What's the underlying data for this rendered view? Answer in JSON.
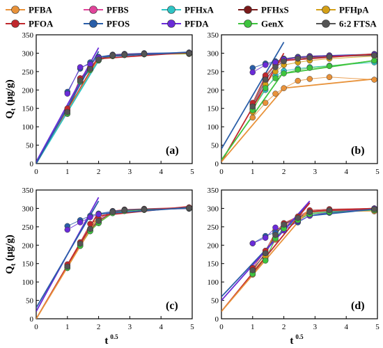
{
  "legend": [
    {
      "name": "PFBA",
      "color": "#e8923a"
    },
    {
      "name": "PFBS",
      "color": "#e0449a"
    },
    {
      "name": "PFHxA",
      "color": "#2ec4c4"
    },
    {
      "name": "PFHxS",
      "color": "#7a1a1a"
    },
    {
      "name": "PFHpA",
      "color": "#d4a017"
    },
    {
      "name": "PFOA",
      "color": "#c0282d"
    },
    {
      "name": "PFOS",
      "color": "#2a5ea8"
    },
    {
      "name": "PFDA",
      "color": "#6a2bd8"
    },
    {
      "name": "GenX",
      "color": "#3ec43e"
    },
    {
      "name": "6:2 FTSA",
      "color": "#555555"
    }
  ],
  "chart_data": [
    {
      "type": "scatter",
      "panel_label": "(a)",
      "ylabel": "Q",
      "ylabel_sub": "t",
      "ylabel_unit": " (μg/g)",
      "xlabel": "",
      "xlim": [
        0,
        5
      ],
      "ylim": [
        0,
        350
      ],
      "xticks": [
        "0",
        "1",
        "2",
        "3",
        "4",
        "5"
      ],
      "yticks": [
        "0",
        "50",
        "100",
        "150",
        "200",
        "250",
        "300",
        "350"
      ],
      "x": [
        1,
        1.41,
        1.73,
        2,
        2.45,
        2.83,
        3.46,
        4.9
      ],
      "series": [
        {
          "name": "PFBA",
          "values": [
            140,
            225,
            255,
            282,
            292,
            295,
            297,
            298
          ]
        },
        {
          "name": "PFBS",
          "values": [
            145,
            230,
            260,
            285,
            295,
            297,
            298,
            300
          ]
        },
        {
          "name": "PFHxA",
          "values": [
            135,
            222,
            255,
            280,
            293,
            296,
            298,
            300
          ]
        },
        {
          "name": "PFHxS",
          "values": [
            142,
            228,
            258,
            284,
            294,
            296,
            298,
            300
          ]
        },
        {
          "name": "PFHpA",
          "values": [
            138,
            226,
            256,
            283,
            292,
            295,
            297,
            298
          ]
        },
        {
          "name": "PFOA",
          "values": [
            150,
            232,
            262,
            287,
            296,
            298,
            299,
            301
          ]
        },
        {
          "name": "PFOS",
          "values": [
            195,
            258,
            275,
            290,
            296,
            298,
            300,
            302
          ]
        },
        {
          "name": "PFDA",
          "values": [
            190,
            262,
            270,
            288,
            295,
            297,
            299,
            301
          ]
        },
        {
          "name": "GenX",
          "values": [
            136,
            224,
            254,
            281,
            293,
            295,
            297,
            299
          ]
        },
        {
          "name": "6:2 FTSA",
          "values": [
            140,
            226,
            257,
            283,
            294,
            296,
            298,
            300
          ]
        }
      ],
      "fit_lines": [
        {
          "name": "PFOA",
          "x": [
            0,
            2
          ],
          "y": [
            0,
            290
          ]
        },
        {
          "name": "PFBA",
          "x": [
            0,
            2
          ],
          "y": [
            0,
            285
          ]
        },
        {
          "name": "PFHxA",
          "x": [
            0,
            2
          ],
          "y": [
            0,
            280
          ]
        },
        {
          "name": "PFDA",
          "x": [
            0,
            2
          ],
          "y": [
            5,
            315
          ]
        },
        {
          "name": "PFOS",
          "x": [
            0,
            2
          ],
          "y": [
            0,
            305
          ]
        },
        {
          "name": "PFOA",
          "x": [
            2,
            4.9
          ],
          "y": [
            285,
            302
          ]
        },
        {
          "name": "PFOS",
          "x": [
            2,
            4.9
          ],
          "y": [
            290,
            303
          ]
        }
      ]
    },
    {
      "type": "scatter",
      "panel_label": "(b)",
      "ylabel": "",
      "xlabel": "",
      "xlim": [
        0,
        5
      ],
      "ylim": [
        0,
        350
      ],
      "xticks": [
        "0",
        "1",
        "2",
        "3",
        "4",
        "5"
      ],
      "yticks": [
        "0",
        "50",
        "100",
        "150",
        "200",
        "250",
        "300",
        "350"
      ],
      "x": [
        1,
        1.41,
        1.73,
        2,
        2.45,
        2.83,
        3.46,
        4.9
      ],
      "series": [
        {
          "name": "PFBA",
          "values": [
            125,
            165,
            190,
            205,
            225,
            230,
            235,
            228
          ]
        },
        {
          "name": "PFBS",
          "values": [
            150,
            225,
            262,
            280,
            288,
            290,
            292,
            295
          ]
        },
        {
          "name": "PFHxA",
          "values": [
            148,
            200,
            238,
            252,
            258,
            262,
            266,
            275
          ]
        },
        {
          "name": "PFHxS",
          "values": [
            160,
            235,
            268,
            282,
            288,
            290,
            292,
            295
          ]
        },
        {
          "name": "PFHpA",
          "values": [
            140,
            215,
            250,
            268,
            275,
            280,
            285,
            292
          ]
        },
        {
          "name": "PFOA",
          "values": [
            165,
            240,
            270,
            285,
            290,
            292,
            294,
            296
          ]
        },
        {
          "name": "PFOS",
          "values": [
            260,
            272,
            278,
            285,
            290,
            292,
            294,
            298
          ]
        },
        {
          "name": "PFDA",
          "values": [
            248,
            268,
            275,
            283,
            288,
            291,
            293,
            297
          ]
        },
        {
          "name": "GenX",
          "values": [
            145,
            205,
            232,
            245,
            255,
            260,
            265,
            280
          ]
        },
        {
          "name": "6:2 FTSA",
          "values": [
            155,
            228,
            262,
            278,
            285,
            288,
            290,
            294
          ]
        }
      ],
      "fit_lines": [
        {
          "name": "PFOS",
          "x": [
            0,
            2
          ],
          "y": [
            40,
            330
          ]
        },
        {
          "name": "PFOA",
          "x": [
            0,
            2
          ],
          "y": [
            5,
            300
          ]
        },
        {
          "name": "PFBA",
          "x": [
            0,
            2
          ],
          "y": [
            5,
            205
          ]
        },
        {
          "name": "GenX",
          "x": [
            0,
            2
          ],
          "y": [
            10,
            250
          ]
        },
        {
          "name": "PFBA",
          "x": [
            2,
            4.9
          ],
          "y": [
            205,
            230
          ]
        },
        {
          "name": "GenX",
          "x": [
            2,
            4.9
          ],
          "y": [
            245,
            280
          ]
        },
        {
          "name": "PFOA",
          "x": [
            2,
            4.9
          ],
          "y": [
            280,
            298
          ]
        }
      ]
    },
    {
      "type": "scatter",
      "panel_label": "(c)",
      "ylabel": "Q",
      "ylabel_sub": "t",
      "ylabel_unit": " (μg/g)",
      "xlabel": "t",
      "xlabel_sup": "0.5",
      "xlim": [
        0,
        5
      ],
      "ylim": [
        0,
        350
      ],
      "xticks": [
        "0",
        "1",
        "2",
        "3",
        "4",
        "5"
      ],
      "yticks": [
        "0",
        "50",
        "100",
        "150",
        "200",
        "250",
        "300",
        "350"
      ],
      "x": [
        1,
        1.41,
        1.73,
        2,
        2.45,
        2.83,
        3.46,
        4.9
      ],
      "series": [
        {
          "name": "PFBA",
          "values": [
            140,
            200,
            240,
            262,
            288,
            294,
            296,
            300
          ]
        },
        {
          "name": "PFBS",
          "values": [
            145,
            205,
            245,
            268,
            292,
            296,
            298,
            302
          ]
        },
        {
          "name": "PFHxA",
          "values": [
            138,
            198,
            238,
            260,
            288,
            293,
            296,
            300
          ]
        },
        {
          "name": "PFHxS",
          "values": [
            142,
            202,
            242,
            265,
            290,
            295,
            297,
            301
          ]
        },
        {
          "name": "PFHpA",
          "values": [
            140,
            200,
            240,
            262,
            289,
            294,
            296,
            300
          ]
        },
        {
          "name": "PFOA",
          "values": [
            148,
            208,
            258,
            272,
            293,
            297,
            299,
            303
          ]
        },
        {
          "name": "PFOS",
          "values": [
            252,
            268,
            280,
            286,
            292,
            296,
            298,
            300
          ]
        },
        {
          "name": "PFDA",
          "values": [
            242,
            262,
            276,
            284,
            290,
            294,
            297,
            299
          ]
        },
        {
          "name": "GenX",
          "values": [
            138,
            198,
            238,
            260,
            287,
            293,
            296,
            300
          ]
        },
        {
          "name": "6:2 FTSA",
          "values": [
            142,
            204,
            244,
            266,
            290,
            295,
            297,
            301
          ]
        }
      ],
      "fit_lines": [
        {
          "name": "PFDA",
          "x": [
            0,
            2
          ],
          "y": [
            20,
            330
          ]
        },
        {
          "name": "PFOS",
          "x": [
            0,
            2
          ],
          "y": [
            30,
            320
          ]
        },
        {
          "name": "PFOA",
          "x": [
            0,
            2
          ],
          "y": [
            0,
            290
          ]
        },
        {
          "name": "PFBA",
          "x": [
            0,
            2
          ],
          "y": [
            0,
            280
          ]
        },
        {
          "name": "PFOA",
          "x": [
            2,
            4.9
          ],
          "y": [
            280,
            305
          ]
        },
        {
          "name": "PFOS",
          "x": [
            2,
            4.9
          ],
          "y": [
            285,
            302
          ]
        }
      ]
    },
    {
      "type": "scatter",
      "panel_label": "(d)",
      "ylabel": "",
      "xlabel": "t",
      "xlabel_sup": "0.5",
      "xlim": [
        0,
        5
      ],
      "ylim": [
        0,
        350
      ],
      "xticks": [
        "0",
        "1",
        "2",
        "3",
        "4",
        "5"
      ],
      "yticks": [
        "0",
        "50",
        "100",
        "150",
        "200",
        "250",
        "300",
        "350"
      ],
      "x": [
        1,
        1.41,
        1.73,
        2,
        2.45,
        2.83,
        3.46,
        4.9
      ],
      "series": [
        {
          "name": "PFBA",
          "values": [
            120,
            165,
            215,
            250,
            270,
            285,
            292,
            292
          ]
        },
        {
          "name": "PFBS",
          "values": [
            130,
            180,
            230,
            255,
            272,
            290,
            295,
            298
          ]
        },
        {
          "name": "PFHxA",
          "values": [
            125,
            160,
            220,
            248,
            268,
            286,
            292,
            296
          ]
        },
        {
          "name": "PFHxS",
          "values": [
            135,
            175,
            228,
            258,
            275,
            292,
            296,
            300
          ]
        },
        {
          "name": "PFHpA",
          "values": [
            128,
            170,
            240,
            252,
            270,
            288,
            294,
            295
          ]
        },
        {
          "name": "PFOA",
          "values": [
            138,
            185,
            235,
            260,
            278,
            295,
            298,
            300
          ]
        },
        {
          "name": "PFOS",
          "values": [
            205,
            225,
            235,
            250,
            262,
            280,
            288,
            298
          ]
        },
        {
          "name": "PFDA",
          "values": [
            205,
            220,
            248,
            240,
            265,
            280,
            290,
            300
          ]
        },
        {
          "name": "GenX",
          "values": [
            122,
            158,
            218,
            245,
            268,
            284,
            290,
            295
          ]
        },
        {
          "name": "6:2 FTSA",
          "values": [
            132,
            178,
            228,
            256,
            274,
            290,
            295,
            298
          ]
        }
      ],
      "fit_lines": [
        {
          "name": "PFOS",
          "x": [
            0,
            2.83
          ],
          "y": [
            60,
            315
          ]
        },
        {
          "name": "PFDA",
          "x": [
            0,
            2.83
          ],
          "y": [
            50,
            320
          ]
        },
        {
          "name": "PFOA",
          "x": [
            0,
            2.83
          ],
          "y": [
            20,
            315
          ]
        },
        {
          "name": "PFBA",
          "x": [
            0,
            2.83
          ],
          "y": [
            20,
            300
          ]
        },
        {
          "name": "PFOA",
          "x": [
            2.83,
            4.9
          ],
          "y": [
            292,
            300
          ]
        },
        {
          "name": "PFOS",
          "x": [
            2.83,
            4.9
          ],
          "y": [
            280,
            298
          ]
        }
      ]
    }
  ]
}
